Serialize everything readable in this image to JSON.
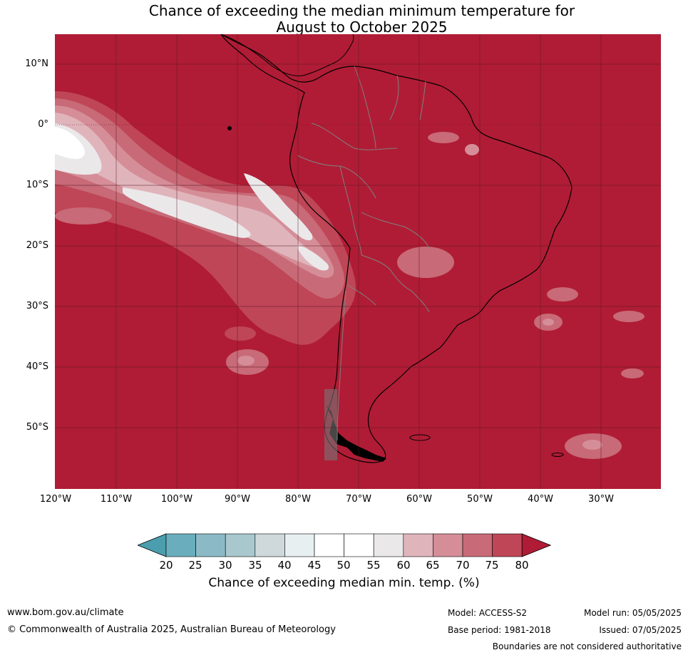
{
  "title": {
    "line1": "Chance of exceeding the median minimum temperature for",
    "line2": "August to October 2025"
  },
  "map": {
    "region": "South America",
    "lat_labels": [
      "10°N",
      "0°",
      "10°S",
      "20°S",
      "30°S",
      "40°S",
      "50°S"
    ],
    "lon_labels": [
      "120°W",
      "110°W",
      "100°W",
      "90°W",
      "80°W",
      "70°W",
      "60°W",
      "50°W",
      "40°W",
      "30°W"
    ],
    "colors": {
      "land_ocean_80plus": "#b01c35",
      "coastline": "#000000",
      "borders": "#808080",
      "gridlines": "#5a1a24"
    }
  },
  "legend": {
    "ticks": [
      "20",
      "25",
      "30",
      "35",
      "40",
      "45",
      "50",
      "55",
      "60",
      "65",
      "70",
      "75",
      "80"
    ],
    "colors": [
      "#4a9ead",
      "#6aaebd",
      "#8bbac6",
      "#a9c8ce",
      "#cfd9dc",
      "#e8eff1",
      "#ffffff",
      "#ffffff",
      "#ebe8ea",
      "#e0b4bb",
      "#d58e98",
      "#c86a77",
      "#bf4657",
      "#b01c35"
    ],
    "caption": "Chance of exceeding median min. temp. (%)"
  },
  "footer": {
    "website": "www.bom.gov.au/climate",
    "copyright": "© Commonwealth of Australia 2025, Australian Bureau of Meteorology",
    "model": "Model: ACCESS-S2",
    "base_period": "Base period: 1981-2018",
    "model_run": "Model run: 05/05/2025",
    "issued": "Issued: 07/05/2025",
    "disclaimer": "Boundaries are not considered authoritative"
  }
}
